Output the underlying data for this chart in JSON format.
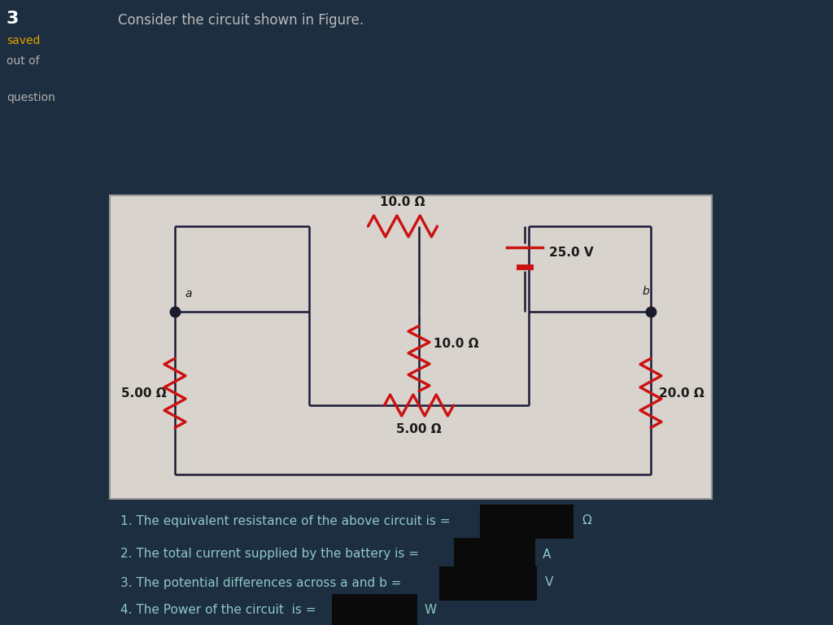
{
  "bg_color": "#1c2e3f",
  "panel_color": "#d8d3cc",
  "panel_edge": "#999999",
  "title_text": "Consider the circuit shown in Figure.",
  "title_color": "#bbbbbb",
  "left_label": "3",
  "saved_label": "saved",
  "out_of_label": "out of",
  "question_label": "question",
  "res_color": "#cc1111",
  "wire_color": "#1a1a3a",
  "battery_color": "#cc1111",
  "label_10T": "10.0 Ω",
  "label_10M": "10.0 Ω",
  "label_5L": "5.00 Ω",
  "label_5B": "5.00 Ω",
  "label_20R": "20.0 Ω",
  "battery_label": "25.0 V",
  "node_a": "a",
  "node_b": "b",
  "q1": "1. The equivalent resistance of the above circuit is =",
  "q1_unit": "Ω",
  "q2": "2. The total current supplied by the battery is =",
  "q2_unit": "A",
  "q3": "3. The potential differences across a and b =",
  "q3_unit": "V",
  "q4": "4. The Power of the circuit  is =",
  "q4_unit": "W",
  "text_color": "#90c8c8",
  "dark_text": "#1a1a1a",
  "box_color": "#0a0a0a"
}
